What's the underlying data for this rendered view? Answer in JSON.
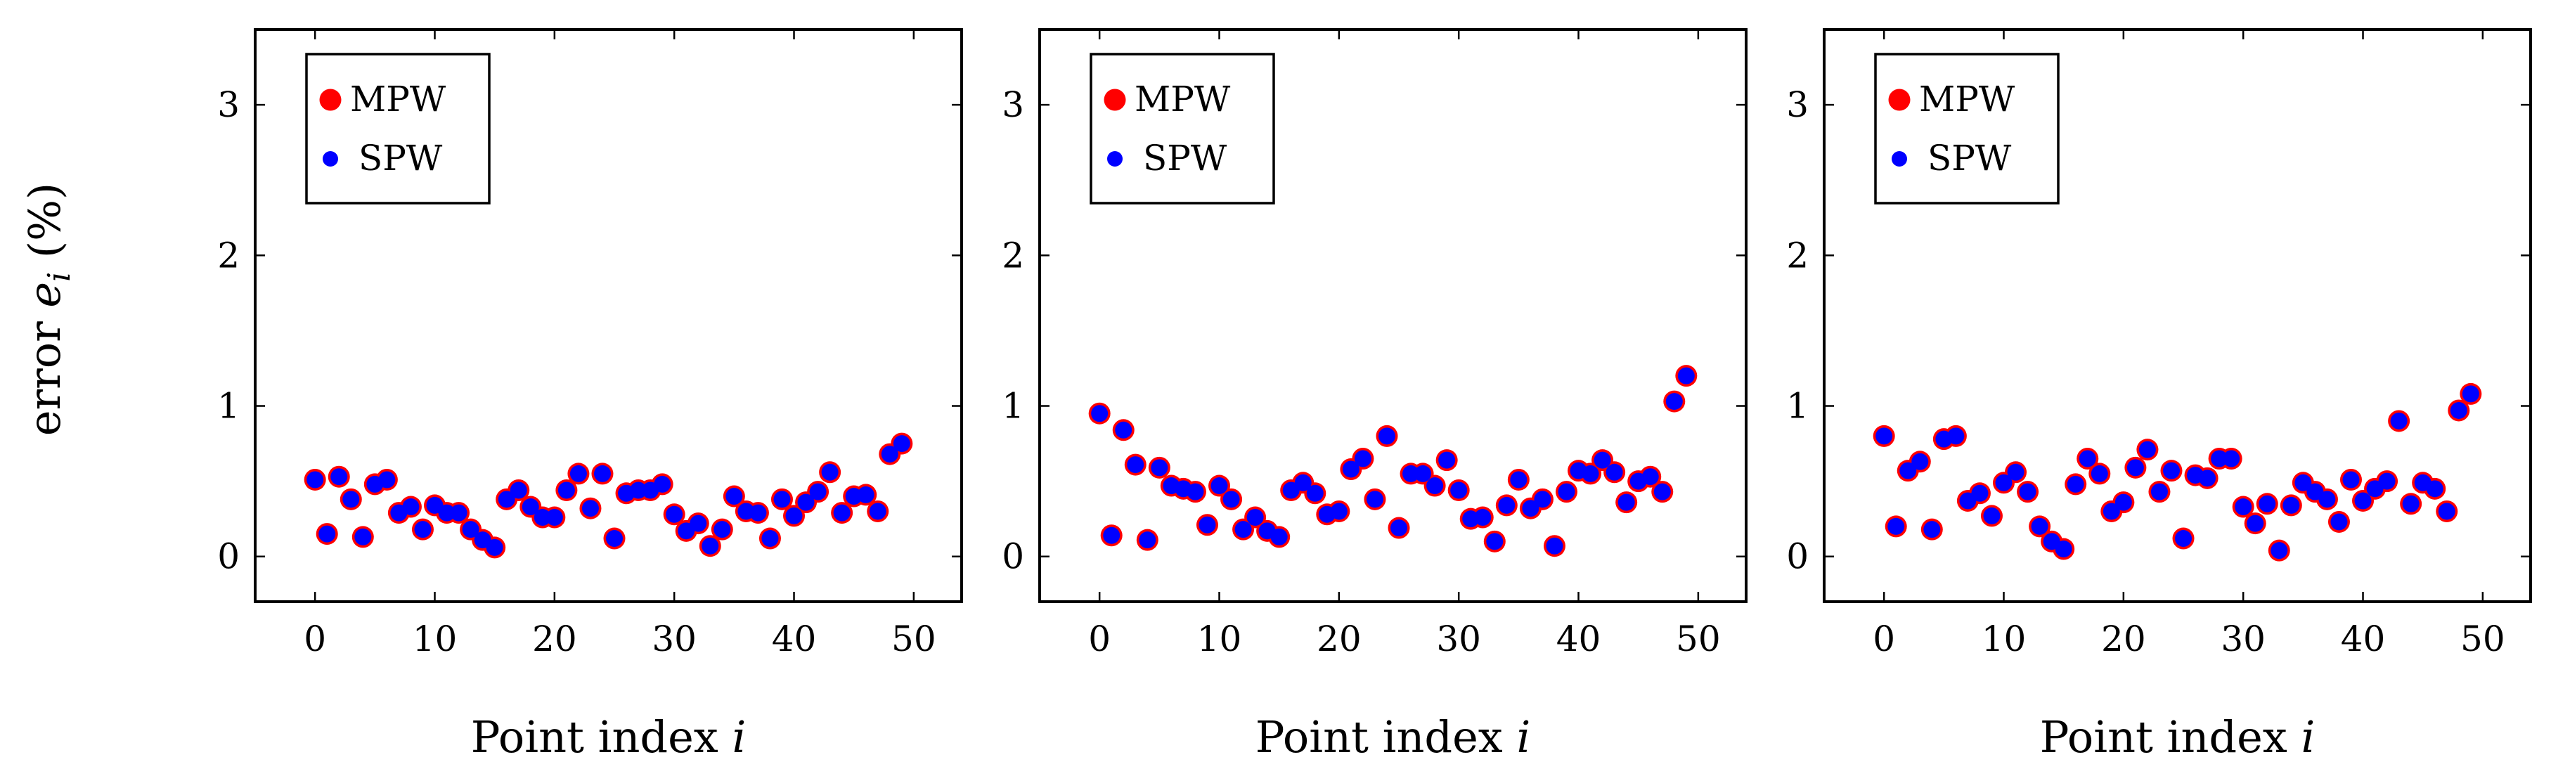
{
  "figure": {
    "ylabel_main": "error ",
    "ylabel_var": "e",
    "ylabel_sub": "i",
    "ylabel_unit": " (%)"
  },
  "chart_data": [
    {
      "type": "scatter",
      "title": "",
      "xlabel_text": "Point index ",
      "xlabel_var": "i",
      "xlim": [
        -5,
        54
      ],
      "ylim": [
        -0.3,
        3.5
      ],
      "xticks": [
        0,
        10,
        20,
        30,
        40,
        50
      ],
      "yticks": [
        0,
        1,
        2,
        3
      ],
      "grid": false,
      "legend_position": "top-left",
      "series": [
        {
          "name": "MPW",
          "color": "#ff0000",
          "marker": "large-circle",
          "x": [
            0,
            1,
            2,
            3,
            4,
            5,
            6,
            7,
            8,
            9,
            10,
            11,
            12,
            13,
            14,
            15,
            16,
            17,
            18,
            19,
            20,
            21,
            22,
            23,
            24,
            25,
            26,
            27,
            28,
            29,
            30,
            31,
            32,
            33,
            34,
            35,
            36,
            37,
            38,
            39,
            40,
            41,
            42,
            43,
            44,
            45,
            46,
            47,
            48,
            49
          ],
          "y": [
            0.51,
            0.15,
            0.53,
            0.38,
            0.13,
            0.48,
            0.51,
            0.29,
            0.33,
            0.18,
            0.34,
            0.29,
            0.29,
            0.18,
            0.11,
            0.06,
            0.38,
            0.44,
            0.33,
            0.26,
            0.26,
            0.44,
            0.55,
            0.32,
            0.55,
            0.12,
            0.42,
            0.44,
            0.44,
            0.48,
            0.28,
            0.17,
            0.22,
            0.07,
            0.18,
            0.4,
            0.3,
            0.29,
            0.12,
            0.38,
            0.27,
            0.36,
            0.43,
            0.56,
            0.29,
            0.4,
            0.41,
            0.3,
            0.68,
            0.75
          ]
        },
        {
          "name": "SPW",
          "color": "#0000ff",
          "marker": "small-circle",
          "x": [
            0,
            1,
            2,
            3,
            4,
            5,
            6,
            7,
            8,
            9,
            10,
            11,
            12,
            13,
            14,
            15,
            16,
            17,
            18,
            19,
            20,
            21,
            22,
            23,
            24,
            25,
            26,
            27,
            28,
            29,
            30,
            31,
            32,
            33,
            34,
            35,
            36,
            37,
            38,
            39,
            40,
            41,
            42,
            43,
            44,
            45,
            46,
            47,
            48,
            49
          ],
          "y": [
            0.51,
            0.15,
            0.53,
            0.38,
            0.13,
            0.48,
            0.51,
            0.29,
            0.33,
            0.18,
            0.34,
            0.29,
            0.29,
            0.18,
            0.11,
            0.06,
            0.38,
            0.44,
            0.33,
            0.26,
            0.26,
            0.44,
            0.55,
            0.32,
            0.55,
            0.12,
            0.42,
            0.44,
            0.44,
            0.48,
            0.28,
            0.17,
            0.22,
            0.07,
            0.18,
            0.4,
            0.3,
            0.29,
            0.12,
            0.38,
            0.27,
            0.36,
            0.43,
            0.56,
            0.29,
            0.4,
            0.41,
            0.3,
            0.68,
            0.75
          ]
        }
      ]
    },
    {
      "type": "scatter",
      "title": "",
      "xlabel_text": "Point index ",
      "xlabel_var": "i",
      "xlim": [
        -5,
        54
      ],
      "ylim": [
        -0.3,
        3.5
      ],
      "xticks": [
        0,
        10,
        20,
        30,
        40,
        50
      ],
      "yticks": [
        0,
        1,
        2,
        3
      ],
      "grid": false,
      "legend_position": "top-left",
      "series": [
        {
          "name": "MPW",
          "color": "#ff0000",
          "marker": "large-circle",
          "x": [
            0,
            1,
            2,
            3,
            4,
            5,
            6,
            7,
            8,
            9,
            10,
            11,
            12,
            13,
            14,
            15,
            16,
            17,
            18,
            19,
            20,
            21,
            22,
            23,
            24,
            25,
            26,
            27,
            28,
            29,
            30,
            31,
            32,
            33,
            34,
            35,
            36,
            37,
            38,
            39,
            40,
            41,
            42,
            43,
            44,
            45,
            46,
            47,
            48,
            49
          ],
          "y": [
            0.95,
            0.14,
            0.84,
            0.61,
            0.11,
            0.59,
            0.47,
            0.45,
            0.43,
            0.21,
            0.47,
            0.38,
            0.18,
            0.26,
            0.17,
            0.13,
            0.44,
            0.49,
            0.42,
            0.28,
            0.3,
            0.58,
            0.65,
            0.38,
            0.8,
            0.19,
            0.55,
            0.55,
            0.47,
            0.64,
            0.44,
            0.25,
            0.26,
            0.1,
            0.34,
            0.51,
            0.32,
            0.38,
            0.07,
            0.43,
            0.57,
            0.55,
            0.64,
            0.56,
            0.36,
            0.5,
            0.53,
            0.43,
            1.03,
            1.2
          ]
        },
        {
          "name": "SPW",
          "color": "#0000ff",
          "marker": "small-circle",
          "x": [
            0,
            1,
            2,
            3,
            4,
            5,
            6,
            7,
            8,
            9,
            10,
            11,
            12,
            13,
            14,
            15,
            16,
            17,
            18,
            19,
            20,
            21,
            22,
            23,
            24,
            25,
            26,
            27,
            28,
            29,
            30,
            31,
            32,
            33,
            34,
            35,
            36,
            37,
            38,
            39,
            40,
            41,
            42,
            43,
            44,
            45,
            46,
            47,
            48,
            49
          ],
          "y": [
            0.95,
            0.14,
            0.84,
            0.61,
            0.11,
            0.59,
            0.47,
            0.45,
            0.43,
            0.21,
            0.47,
            0.38,
            0.18,
            0.26,
            0.17,
            0.13,
            0.44,
            0.49,
            0.42,
            0.28,
            0.3,
            0.58,
            0.65,
            0.38,
            0.8,
            0.19,
            0.55,
            0.55,
            0.47,
            0.64,
            0.44,
            0.25,
            0.26,
            0.1,
            0.34,
            0.51,
            0.32,
            0.38,
            0.07,
            0.43,
            0.57,
            0.55,
            0.64,
            0.56,
            0.36,
            0.5,
            0.53,
            0.43,
            1.03,
            1.2
          ]
        }
      ]
    },
    {
      "type": "scatter",
      "title": "",
      "xlabel_text": "Point index ",
      "xlabel_var": "i",
      "xlim": [
        -5,
        54
      ],
      "ylim": [
        -0.3,
        3.5
      ],
      "xticks": [
        0,
        10,
        20,
        30,
        40,
        50
      ],
      "yticks": [
        0,
        1,
        2,
        3
      ],
      "grid": false,
      "legend_position": "top-left",
      "series": [
        {
          "name": "MPW",
          "color": "#ff0000",
          "marker": "large-circle",
          "x": [
            0,
            1,
            2,
            3,
            4,
            5,
            6,
            7,
            8,
            9,
            10,
            11,
            12,
            13,
            14,
            15,
            16,
            17,
            18,
            19,
            20,
            21,
            22,
            23,
            24,
            25,
            26,
            27,
            28,
            29,
            30,
            31,
            32,
            33,
            34,
            35,
            36,
            37,
            38,
            39,
            40,
            41,
            42,
            43,
            44,
            45,
            46,
            47,
            48,
            49
          ],
          "y": [
            0.8,
            0.2,
            0.57,
            0.63,
            0.18,
            0.78,
            0.8,
            0.37,
            0.42,
            0.27,
            0.49,
            0.56,
            0.43,
            0.2,
            0.1,
            0.05,
            0.48,
            0.65,
            0.55,
            0.3,
            0.36,
            0.59,
            0.71,
            0.43,
            0.57,
            0.12,
            0.54,
            0.52,
            0.65,
            0.65,
            0.33,
            0.22,
            0.35,
            0.04,
            0.34,
            0.49,
            0.43,
            0.38,
            0.23,
            0.51,
            0.37,
            0.45,
            0.5,
            0.9,
            0.35,
            0.49,
            0.45,
            0.3,
            0.97,
            1.08
          ]
        },
        {
          "name": "SPW",
          "color": "#0000ff",
          "marker": "small-circle",
          "x": [
            0,
            1,
            2,
            3,
            4,
            5,
            6,
            7,
            8,
            9,
            10,
            11,
            12,
            13,
            14,
            15,
            16,
            17,
            18,
            19,
            20,
            21,
            22,
            23,
            24,
            25,
            26,
            27,
            28,
            29,
            30,
            31,
            32,
            33,
            34,
            35,
            36,
            37,
            38,
            39,
            40,
            41,
            42,
            43,
            44,
            45,
            46,
            47,
            48,
            49
          ],
          "y": [
            0.8,
            0.2,
            0.57,
            0.63,
            0.18,
            0.78,
            0.8,
            0.37,
            0.42,
            0.27,
            0.49,
            0.56,
            0.43,
            0.2,
            0.1,
            0.05,
            0.48,
            0.65,
            0.55,
            0.3,
            0.36,
            0.59,
            0.71,
            0.43,
            0.57,
            0.12,
            0.54,
            0.52,
            0.65,
            0.65,
            0.33,
            0.22,
            0.35,
            0.04,
            0.34,
            0.49,
            0.43,
            0.38,
            0.23,
            0.51,
            0.37,
            0.45,
            0.5,
            0.9,
            0.35,
            0.49,
            0.45,
            0.3,
            0.97,
            1.08
          ]
        }
      ]
    }
  ]
}
